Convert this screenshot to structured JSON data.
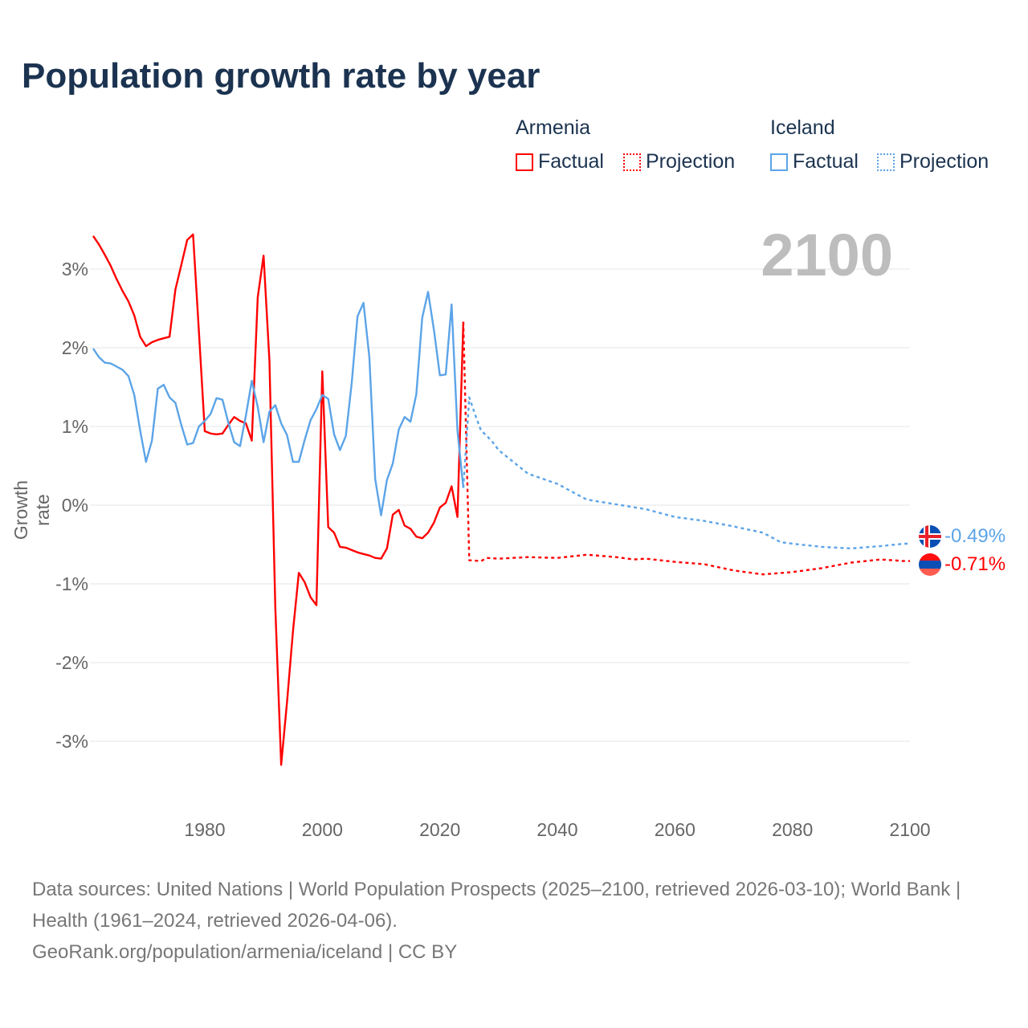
{
  "title": "Population growth rate by year",
  "legend": {
    "groups": [
      {
        "name": "Armenia",
        "factual": "Factual",
        "projection": "Projection",
        "color": "#ff0000"
      },
      {
        "name": "Iceland",
        "factual": "Factual",
        "projection": "Projection",
        "color": "#5ca4e8"
      }
    ]
  },
  "current_year": "2100",
  "end_labels": {
    "iceland": "-0.49%",
    "armenia": "-0.71%"
  },
  "footer": {
    "sources": "Data sources: United Nations | World Population Prospects (2025–2100, retrieved 2026-03-10); World Bank | Health (1961–2024, retrieved 2026-04-06).",
    "credit": "GeoRank.org/population/armenia/iceland | CC BY"
  },
  "chart_data": {
    "type": "line",
    "title": "Population growth rate by year",
    "xlabel": "",
    "ylabel": "Growth rate",
    "xlim": [
      1961,
      2100
    ],
    "ylim": [
      -3.9,
      3.6
    ],
    "xticks": [
      1980,
      2000,
      2020,
      2040,
      2060,
      2080,
      2100
    ],
    "xtick_labels": [
      "1980",
      "2000",
      "2020",
      "2040",
      "2060",
      "2080",
      "2100"
    ],
    "yticks": [
      3,
      2,
      1,
      0,
      -1,
      -2,
      -3
    ],
    "ytick_labels": [
      "3%",
      "2%",
      "1%",
      "0%",
      "-1%",
      "-2%",
      "-3%"
    ],
    "grid": true,
    "legend_position": "top-right",
    "series": [
      {
        "name": "Armenia Factual",
        "color": "#ff0000",
        "style": "solid",
        "x_start": 1961,
        "values": [
          3.42,
          3.31,
          3.18,
          3.04,
          2.87,
          2.72,
          2.59,
          2.41,
          2.14,
          2.02,
          2.07,
          2.1,
          2.12,
          2.14,
          2.74,
          3.05,
          3.37,
          3.44,
          2.2,
          0.94,
          0.91,
          0.9,
          0.91,
          1.02,
          1.12,
          1.07,
          1.04,
          0.82,
          2.64,
          3.17,
          1.83,
          -1.3,
          -3.3,
          -2.5,
          -1.6,
          -0.86,
          -0.98,
          -1.17,
          -1.27,
          1.7,
          -0.28,
          -0.35,
          -0.53,
          -0.54,
          -0.57,
          -0.6,
          -0.62,
          -0.64,
          -0.67,
          -0.68,
          -0.55,
          -0.12,
          -0.06,
          -0.26,
          -0.3,
          -0.4,
          -0.42,
          -0.35,
          -0.22,
          -0.03,
          0.03,
          0.24,
          -0.15,
          2.33
        ]
      },
      {
        "name": "Iceland Factual",
        "color": "#5ca4e8",
        "style": "solid",
        "x_start": 1961,
        "values": [
          1.99,
          1.88,
          1.81,
          1.8,
          1.76,
          1.72,
          1.64,
          1.4,
          0.95,
          0.55,
          0.82,
          1.48,
          1.53,
          1.37,
          1.3,
          1.02,
          0.77,
          0.79,
          1.0,
          1.07,
          1.16,
          1.36,
          1.34,
          1.05,
          0.8,
          0.75,
          1.14,
          1.58,
          1.25,
          0.8,
          1.19,
          1.27,
          1.04,
          0.89,
          0.55,
          0.55,
          0.83,
          1.08,
          1.22,
          1.4,
          1.35,
          0.9,
          0.7,
          0.88,
          1.55,
          2.4,
          2.57,
          1.88,
          0.33,
          -0.13,
          0.32,
          0.53,
          0.96,
          1.12,
          1.06,
          1.41,
          2.38,
          2.71,
          2.22,
          1.65,
          1.66,
          2.55,
          0.95,
          0.22
        ]
      },
      {
        "name": "Armenia Projection",
        "color": "#ff0000",
        "style": "dotted",
        "x": [
          2024,
          2025,
          2027,
          2028,
          2030,
          2035,
          2040,
          2045,
          2050,
          2053,
          2055,
          2060,
          2065,
          2070,
          2075,
          2080,
          2085,
          2090,
          2095,
          2099,
          2100
        ],
        "values": [
          2.33,
          -0.7,
          -0.71,
          -0.67,
          -0.68,
          -0.66,
          -0.67,
          -0.63,
          -0.66,
          -0.69,
          -0.68,
          -0.72,
          -0.75,
          -0.83,
          -0.88,
          -0.85,
          -0.8,
          -0.73,
          -0.69,
          -0.71,
          -0.71
        ]
      },
      {
        "name": "Iceland Projection",
        "color": "#5ca4e8",
        "style": "dotted",
        "x": [
          2024,
          2025,
          2026,
          2027,
          2028,
          2029,
          2030,
          2035,
          2040,
          2045,
          2050,
          2055,
          2060,
          2065,
          2070,
          2075,
          2078,
          2080,
          2085,
          2090,
          2095,
          2099,
          2100
        ],
        "values": [
          0.22,
          1.37,
          1.15,
          0.95,
          0.88,
          0.8,
          0.7,
          0.4,
          0.27,
          0.07,
          0.01,
          -0.05,
          -0.15,
          -0.2,
          -0.27,
          -0.35,
          -0.47,
          -0.49,
          -0.53,
          -0.55,
          -0.52,
          -0.49,
          -0.49
        ]
      }
    ]
  }
}
